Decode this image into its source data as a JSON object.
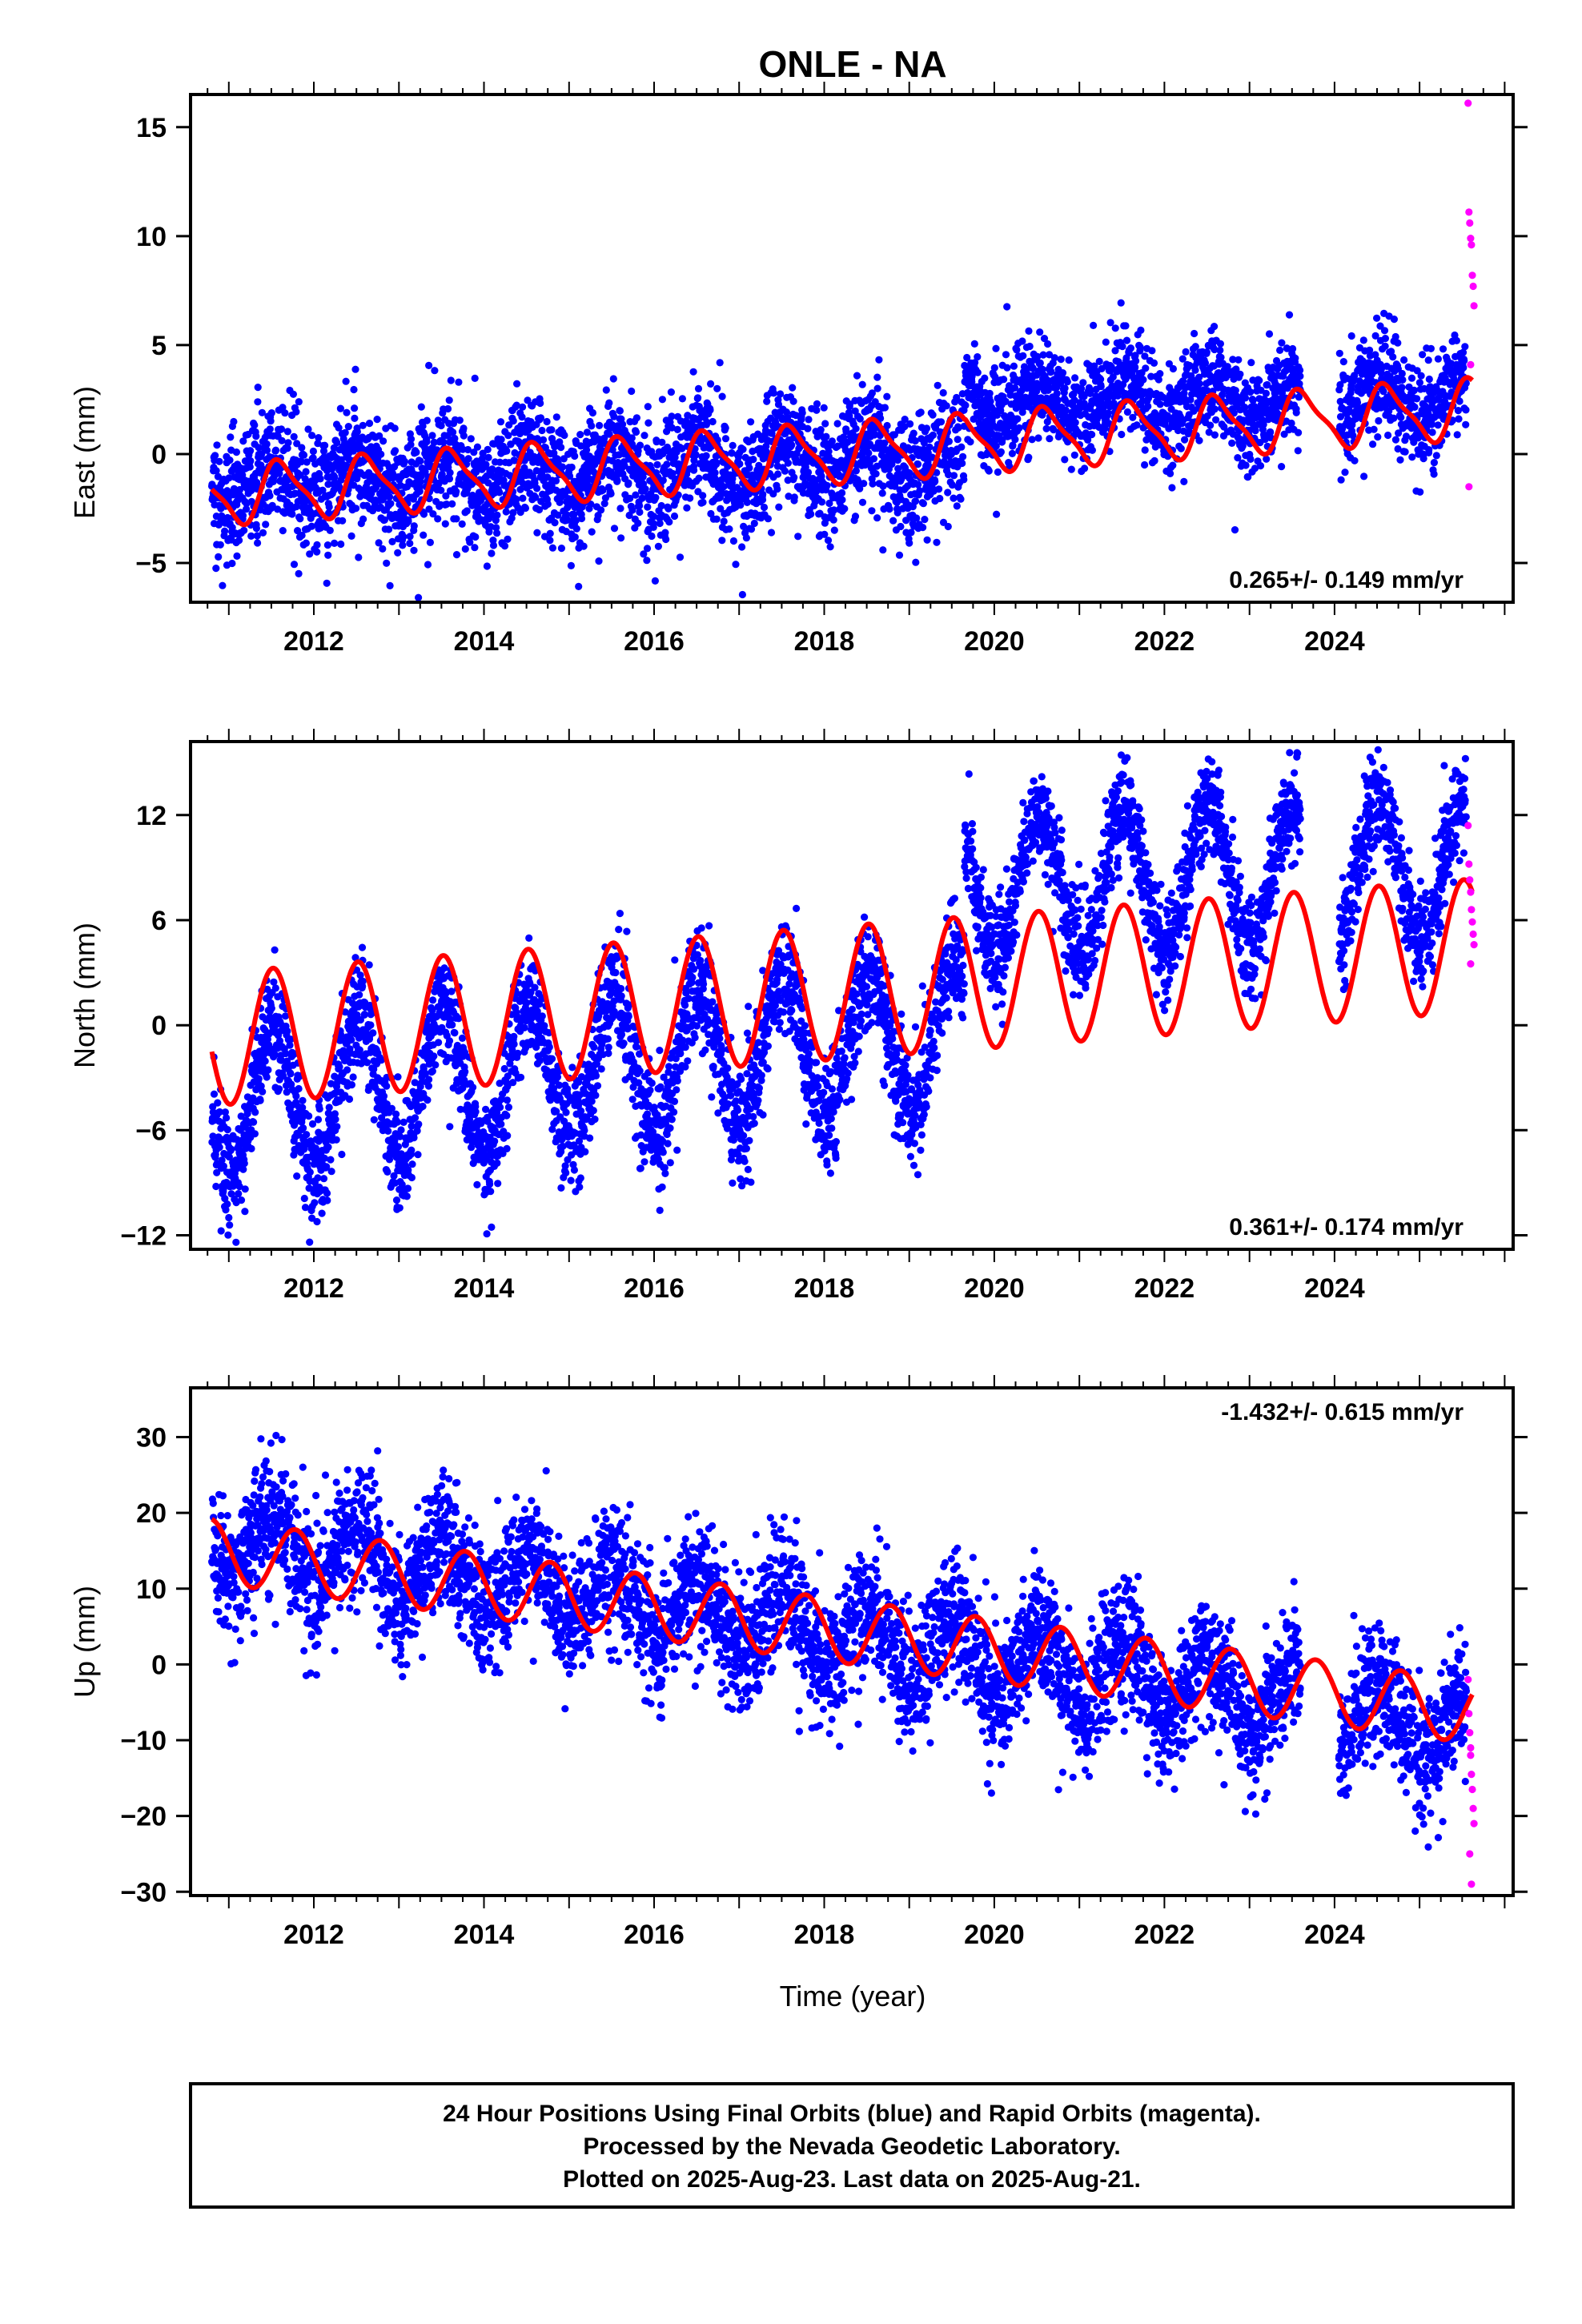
{
  "title": "ONLE - NA",
  "xlabel": "Time (year)",
  "footer": {
    "lines": [
      "24 Hour Positions Using Final Orbits (blue) and Rapid Orbits (magenta).",
      "Processed by the Nevada Geodetic Laboratory.",
      "Plotted on 2025-Aug-23. Last data on 2025-Aug-21."
    ]
  },
  "colors": {
    "final": "#0000ff",
    "rapid": "#ff00ff",
    "model": "#ff0000",
    "frame": "#000000"
  },
  "chart_data": [
    {
      "type": "scatter",
      "component": "east",
      "ylabel": "East (mm)",
      "rate": "0.265+/- 0.149 mm/yr",
      "rate_placement": "bottom-right",
      "xlim": [
        2010.55,
        2026.1
      ],
      "ylim": [
        -6.8,
        16.5
      ],
      "xticks": [
        2012,
        2014,
        2016,
        2018,
        2020,
        2022,
        2024
      ],
      "yticks": [
        -5,
        0,
        5,
        10,
        15
      ],
      "ytick_labels": [
        "−5",
        "0",
        "5",
        "10",
        "15"
      ],
      "series": [
        {
          "kind": "final_orbits_daily_positions",
          "marker": "dot",
          "x_range": [
            2010.8,
            2025.55
          ],
          "segments": [
            {
              "x": [
                2010.8,
                2019.65
              ],
              "level": -1.3,
              "trend": 0.12,
              "annual_amp": 0.9,
              "scatter": 1.4
            },
            {
              "x": [
                2019.65,
                2025.55
              ],
              "level": 2.5,
              "trend": 0.0,
              "annual_amp": 0.9,
              "scatter": 1.2
            }
          ],
          "gaps": [
            [
              2023.6,
              2024.05
            ]
          ]
        },
        {
          "kind": "rapid_orbits_daily_positions",
          "marker": "dot",
          "x": [
            2025.57,
            2025.58,
            2025.59,
            2025.6,
            2025.61,
            2025.62,
            2025.63,
            2025.64,
            2025.6,
            2025.58
          ],
          "y": [
            16.1,
            11.1,
            10.6,
            9.9,
            9.6,
            8.2,
            7.7,
            6.8,
            4.1,
            -1.5
          ]
        }
      ],
      "model": {
        "kind": "trend_plus_seasonal",
        "x_range": [
          2010.8,
          2025.62
        ],
        "offset_epoch": 2019.65,
        "before": {
          "intercept_at_2010.8": -1.9,
          "rate": 0.265
        },
        "after": {
          "intercept_at_2019.65": 0.5
        },
        "annual_amp": 1.3,
        "annual_peak_phase_year": 0.62,
        "semiannual_amp": 0.35
      }
    },
    {
      "type": "scatter",
      "component": "north",
      "ylabel": "North (mm)",
      "rate": "0.361+/- 0.174 mm/yr",
      "rate_placement": "bottom-right",
      "xlim": [
        2010.55,
        2026.1
      ],
      "ylim": [
        -12.8,
        16.2
      ],
      "xticks": [
        2012,
        2014,
        2016,
        2018,
        2020,
        2022,
        2024
      ],
      "yticks": [
        -12,
        -6,
        0,
        6,
        12
      ],
      "ytick_labels": [
        "−12",
        "−6",
        "0",
        "6",
        "12"
      ],
      "series": [
        {
          "kind": "final_orbits_daily_positions",
          "marker": "dot",
          "x_range": [
            2010.8,
            2025.55
          ],
          "segments": [
            {
              "x": [
                2010.8,
                2019.65
              ],
              "level": -4.5,
              "trend": 0.45,
              "annual_amp": 4.2,
              "scatter": 1.6
            },
            {
              "x": [
                2019.65,
                2025.55
              ],
              "level": 8.0,
              "trend": 0.15,
              "annual_amp": 4.0,
              "scatter": 1.4
            }
          ],
          "gaps": [
            [
              2023.6,
              2024.05
            ]
          ]
        },
        {
          "kind": "rapid_orbits_daily_positions",
          "marker": "dot",
          "x": [
            2025.57,
            2025.58,
            2025.59,
            2025.6,
            2025.61,
            2025.62,
            2025.63,
            2025.64,
            2025.6
          ],
          "y": [
            11.4,
            9.2,
            8.3,
            7.6,
            6.6,
            5.9,
            5.2,
            4.6,
            3.5
          ]
        }
      ],
      "model": {
        "kind": "trend_plus_seasonal",
        "x_range": [
          2010.8,
          2025.62
        ],
        "offset_epoch": null,
        "before": {
          "intercept_at_2010.8": -0.8,
          "rate": 0.361
        },
        "after": null,
        "annual_amp": 3.8,
        "annual_peak_phase_year": 0.52,
        "semiannual_amp": 0.0
      }
    },
    {
      "type": "scatter",
      "component": "up",
      "ylabel": "Up (mm)",
      "rate": "-1.432+/- 0.615 mm/yr",
      "rate_placement": "top-right",
      "xlim": [
        2010.55,
        2026.1
      ],
      "ylim": [
        -30.5,
        36.5
      ],
      "xticks": [
        2012,
        2014,
        2016,
        2018,
        2020,
        2022,
        2024
      ],
      "yticks": [
        -30,
        -20,
        -10,
        0,
        10,
        20,
        30
      ],
      "ytick_labels": [
        "−30",
        "−20",
        "−10",
        "0",
        "10",
        "20",
        "30"
      ],
      "series": [
        {
          "kind": "final_orbits_daily_positions",
          "marker": "dot",
          "x_range": [
            2010.8,
            2025.55
          ],
          "segments": [
            {
              "x": [
                2010.8,
                2025.55
              ],
              "level": 17.0,
              "trend": -1.75,
              "annual_amp": 4.5,
              "scatter": 4.2
            }
          ],
          "gaps": [
            [
              2023.6,
              2024.05
            ]
          ]
        },
        {
          "kind": "rapid_orbits_daily_positions",
          "marker": "dot",
          "x": [
            2025.57,
            2025.58,
            2025.59,
            2025.6,
            2025.61,
            2025.62,
            2025.63,
            2025.64,
            2025.59,
            2025.61,
            2025.6
          ],
          "y": [
            -2.0,
            -6.5,
            -9.0,
            -12.0,
            -14.5,
            -16.5,
            -19.0,
            -21.0,
            -25.0,
            -29.0,
            -11.0
          ]
        }
      ],
      "model": {
        "kind": "trend_plus_seasonal",
        "x_range": [
          2010.8,
          2025.62
        ],
        "offset_epoch": null,
        "before": {
          "intercept_at_2010.8": 15.0,
          "rate": -1.432
        },
        "after": null,
        "annual_amp": 4.2,
        "annual_peak_phase_year": 0.78,
        "semiannual_amp": 0.0
      }
    }
  ]
}
